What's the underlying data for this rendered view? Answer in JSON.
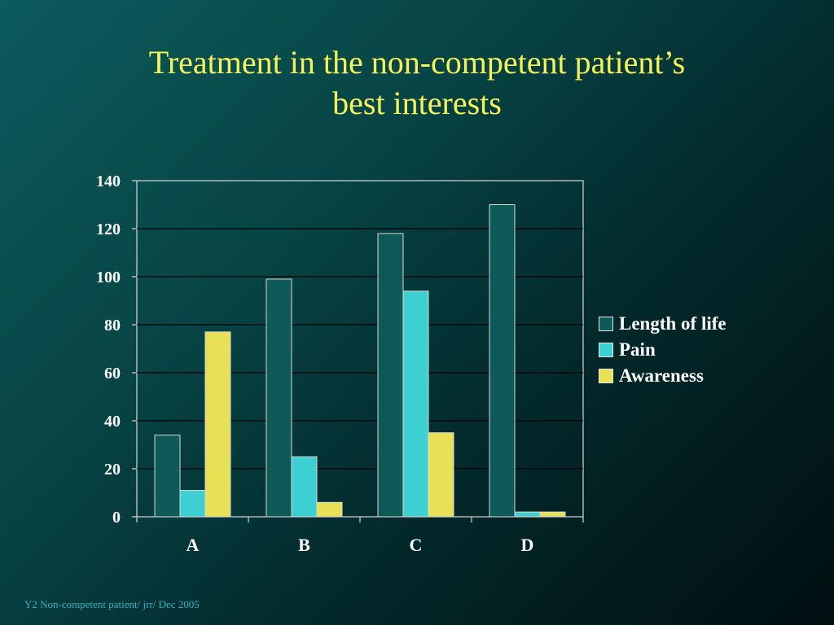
{
  "slide": {
    "title_line1": "Treatment in the non-competent patient’s",
    "title_line2": "best interests",
    "footer": "Y2 Non-competent patient/ jrr/  Dec 2005"
  },
  "chart_data": {
    "type": "bar",
    "categories": [
      "A",
      "B",
      "C",
      "D"
    ],
    "series": [
      {
        "name": "Length of life",
        "values": [
          34,
          99,
          118,
          130
        ],
        "color": "#0e5a59"
      },
      {
        "name": "Pain",
        "values": [
          11,
          25,
          94,
          2
        ],
        "color": "#3ecfd2"
      },
      {
        "name": "Awareness",
        "values": [
          77,
          6,
          35,
          2
        ],
        "color": "#e9e155"
      }
    ],
    "ylim": [
      0,
      140
    ],
    "yticks": [
      0,
      20,
      40,
      60,
      80,
      100,
      120,
      140
    ],
    "grid": true,
    "legend": "right"
  }
}
